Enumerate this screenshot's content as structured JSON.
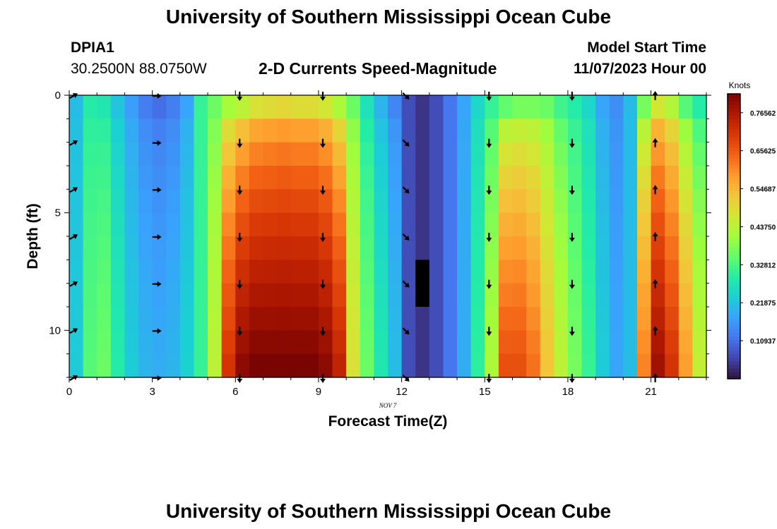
{
  "header": {
    "title": "University of Southern Mississippi Ocean Cube",
    "station": "DPIA1",
    "coords": "30.2500N  88.0750W",
    "subtitle": "2-D Currents Speed-Magnitude",
    "model_label": "Model Start Time",
    "model_time": "11/07/2023 Hour 00"
  },
  "footer": {
    "title": "University of Southern Mississippi Ocean Cube"
  },
  "chart_data": {
    "type": "heatmap",
    "title": "2-D Currents Speed-Magnitude",
    "xlabel": "Forecast Time(Z)",
    "ylabel": "Depth (ft)",
    "date_label": "NOV 7",
    "colorbar_label": "Knots",
    "x_range": [
      0,
      23
    ],
    "y_range": [
      0,
      12
    ],
    "x_ticks": [
      0,
      3,
      6,
      9,
      12,
      15,
      18,
      21
    ],
    "y_ticks": [
      0,
      5,
      10
    ],
    "colorbar_range": [
      0.0,
      0.82
    ],
    "colorbar_ticks": [
      "0.10937",
      "0.21875",
      "0.32812",
      "0.43750",
      "0.54687",
      "0.65625",
      "0.76562"
    ],
    "colorbar_tick_values": [
      0.10937,
      0.21875,
      0.32812,
      0.4375,
      0.54687,
      0.65625,
      0.76562
    ],
    "colors": {
      "colormap": [
        "#30123b",
        "#4145ab",
        "#4675ed",
        "#39a2fc",
        "#1bcfd4",
        "#24eca6",
        "#61fc6c",
        "#a4fc3b",
        "#d1e834",
        "#f3c63a",
        "#fe9b2d",
        "#f36315",
        "#d93806",
        "#b11901",
        "#7a0402"
      ],
      "missing": "#000000",
      "arrow": "#000000"
    },
    "hours": [
      0,
      0.5,
      1,
      1.5,
      2,
      2.5,
      3,
      3.5,
      4,
      4.5,
      5,
      5.5,
      6,
      6.5,
      7,
      7.5,
      8,
      8.5,
      9,
      9.5,
      10,
      10.5,
      11,
      11.5,
      12,
      12.5,
      13,
      13.5,
      14,
      14.5,
      15,
      15.5,
      16,
      16.5,
      17,
      17.5,
      18,
      18.5,
      19,
      19.5,
      20,
      20.5,
      21,
      21.5,
      22,
      22.5
    ],
    "depths": [
      0,
      1,
      2,
      3,
      4,
      5,
      6,
      7,
      8,
      9,
      10,
      11
    ],
    "surface_speed": [
      0.21,
      0.29,
      0.28,
      0.22,
      0.17,
      0.13,
      0.11,
      0.13,
      0.18,
      0.31,
      0.36,
      0.41,
      0.44,
      0.48,
      0.49,
      0.5,
      0.49,
      0.49,
      0.47,
      0.42,
      0.36,
      0.27,
      0.2,
      0.14,
      0.07,
      0.04,
      0.07,
      0.12,
      0.18,
      0.25,
      0.31,
      0.35,
      0.37,
      0.37,
      0.36,
      0.32,
      0.29,
      0.25,
      0.18,
      0.15,
      0.21,
      0.37,
      0.47,
      0.43,
      0.34,
      0.29
    ],
    "bottom_speed": [
      0.23,
      0.34,
      0.36,
      0.29,
      0.23,
      0.2,
      0.19,
      0.2,
      0.24,
      0.31,
      0.44,
      0.71,
      0.8,
      0.82,
      0.82,
      0.82,
      0.82,
      0.82,
      0.8,
      0.74,
      0.48,
      0.36,
      0.28,
      0.21,
      0.07,
      0.04,
      0.07,
      0.12,
      0.19,
      0.3,
      0.42,
      0.67,
      0.67,
      0.63,
      0.53,
      0.44,
      0.37,
      0.31,
      0.23,
      0.18,
      0.21,
      0.61,
      0.78,
      0.71,
      0.58,
      0.45
    ],
    "missing_cells": [
      {
        "hour": 12.5,
        "depths": [
          7,
          8
        ]
      }
    ],
    "arrow_hours": [
      0,
      3,
      6,
      9,
      12,
      15,
      18,
      21
    ],
    "arrow_depths": [
      0,
      2,
      4,
      6,
      8,
      10,
      12
    ],
    "arrow_directions_deg": [
      60,
      90,
      180,
      180,
      135,
      180,
      180,
      0
    ]
  }
}
